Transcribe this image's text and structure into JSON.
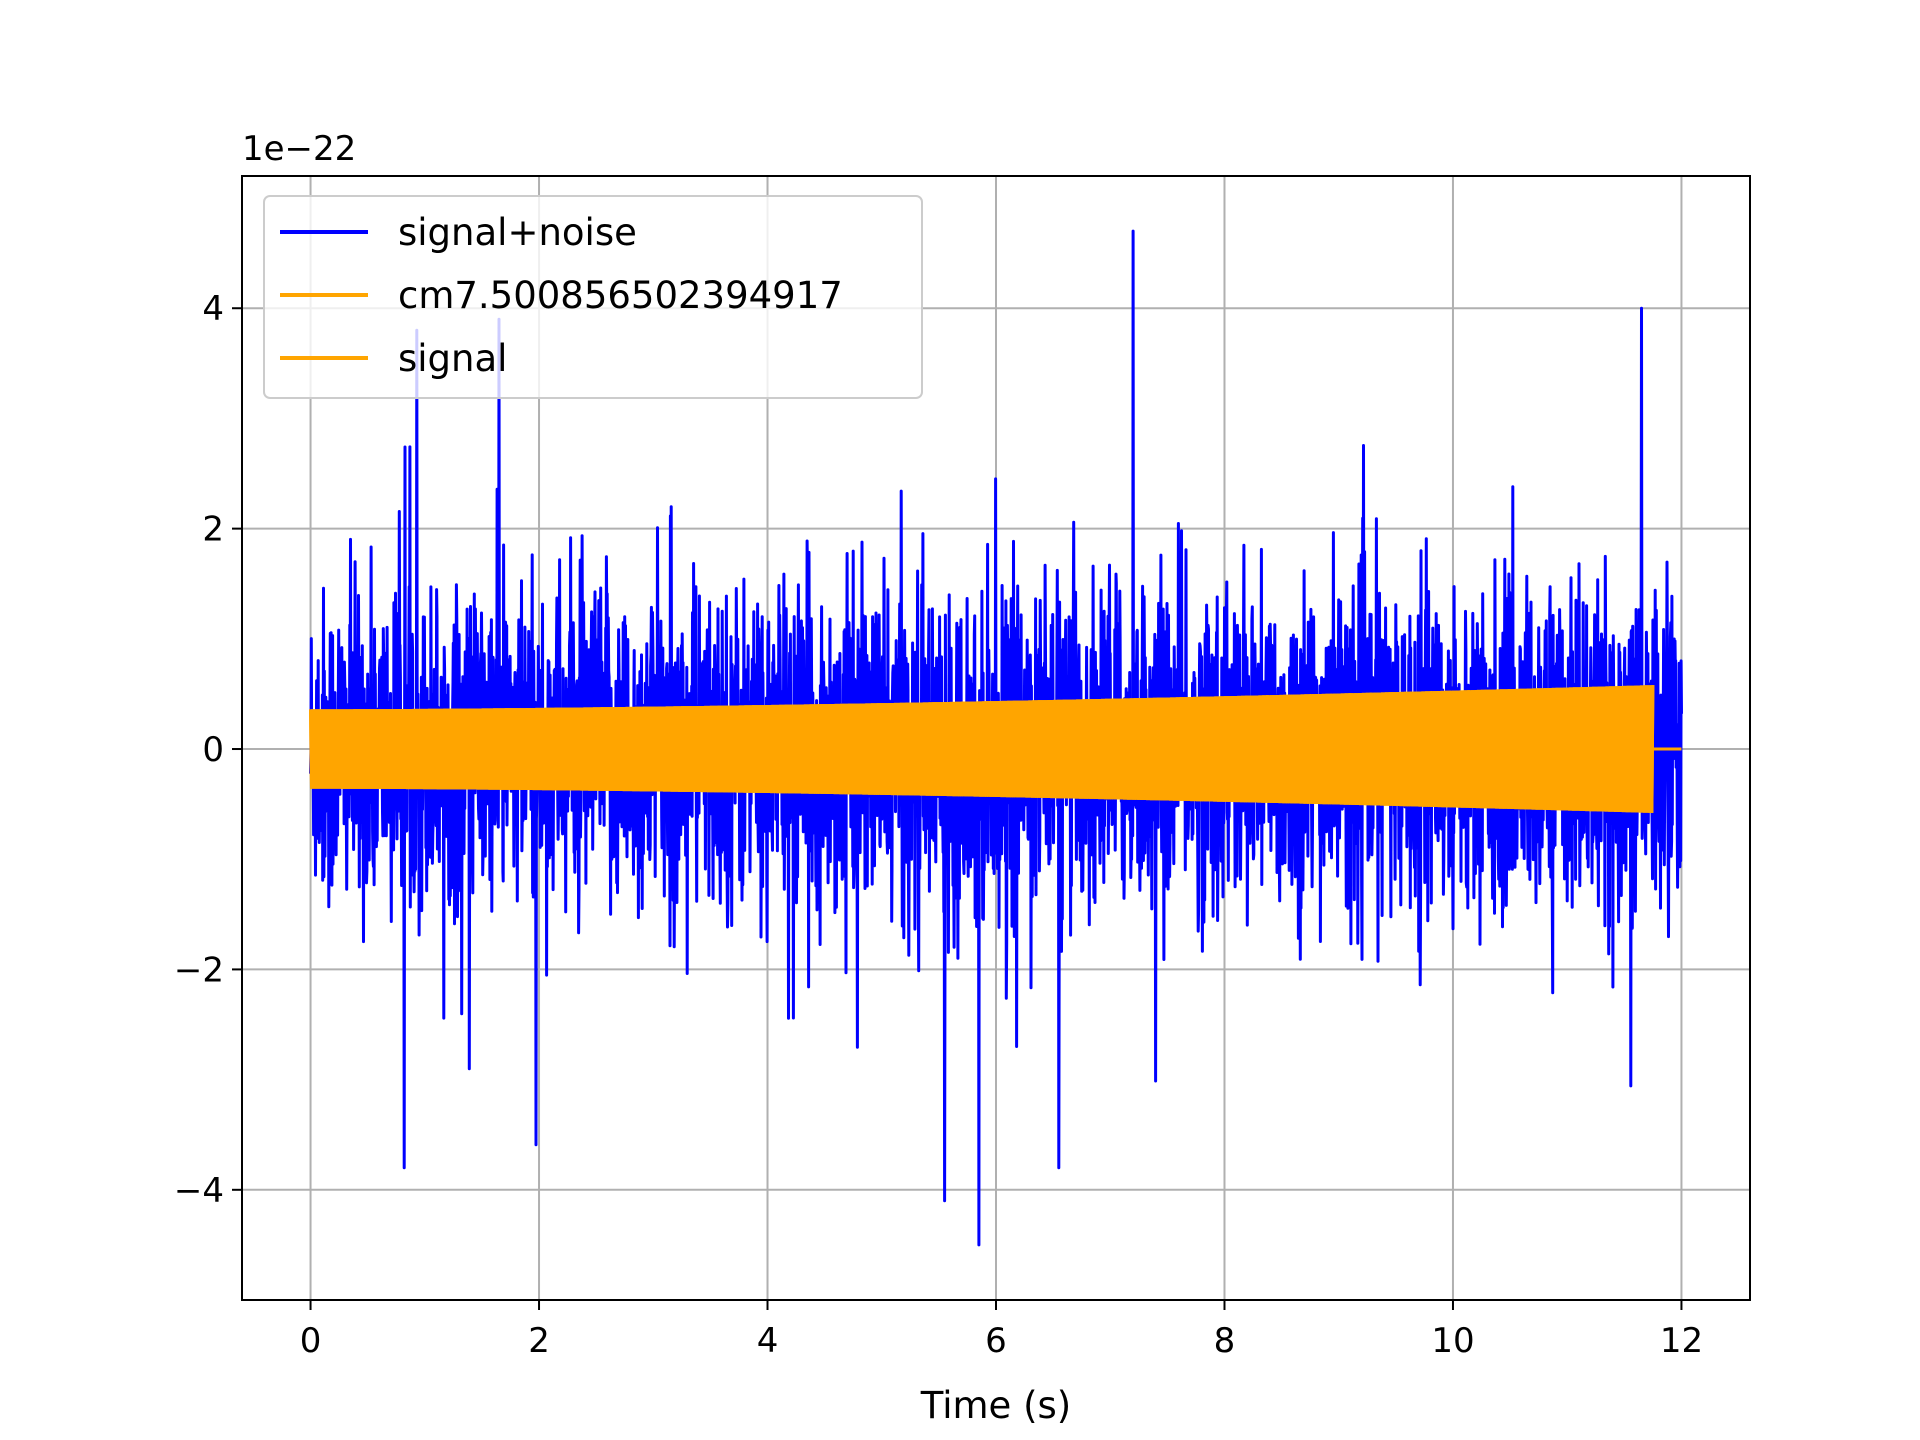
{
  "chart_data": {
    "type": "line",
    "title": "",
    "xlabel": "Time (s)",
    "ylabel": "",
    "offset_text": "1e−22",
    "xlim": [
      -0.6,
      12.6
    ],
    "ylim": [
      -5.0,
      5.2
    ],
    "y_scale": 1e-22,
    "grid": true,
    "legend_placement": "upper left",
    "x_ticks": [
      {
        "value": 0,
        "label": "0"
      },
      {
        "value": 2,
        "label": "2"
      },
      {
        "value": 4,
        "label": "4"
      },
      {
        "value": 6,
        "label": "6"
      },
      {
        "value": 8,
        "label": "8"
      },
      {
        "value": 10,
        "label": "10"
      },
      {
        "value": 12,
        "label": "12"
      }
    ],
    "y_ticks": [
      {
        "value": 4,
        "label": "4"
      },
      {
        "value": 2,
        "label": "2"
      },
      {
        "value": 0,
        "label": "0"
      },
      {
        "value": -2,
        "label": "−2"
      },
      {
        "value": -4,
        "label": "−4"
      }
    ],
    "series": [
      {
        "name": "signal+noise",
        "color": "#0000ff",
        "x_range": [
          0,
          12.0
        ],
        "typical_envelope": [
          -2.2,
          2.2
        ],
        "peaks": [
          {
            "x": 7.2,
            "y": 4.7
          },
          {
            "x": 11.65,
            "y": 4.0
          },
          {
            "x": 0.93,
            "y": 3.8
          },
          {
            "x": 5.85,
            "y": -4.5
          },
          {
            "x": 5.55,
            "y": -4.1
          },
          {
            "x": 1.65,
            "y": 3.9
          },
          {
            "x": 0.82,
            "y": -3.8
          },
          {
            "x": 6.55,
            "y": -3.8
          }
        ]
      },
      {
        "name": "cm7.500856502394917",
        "color": "#ffa500",
        "x_range": [
          0,
          11.75
        ],
        "amplitude_start": 0.36,
        "amplitude_end": 0.58
      },
      {
        "name": "signal",
        "color": "#ffa500",
        "x_range": [
          0,
          12.0
        ],
        "amplitude_start": 0.36,
        "amplitude_end": 0.58,
        "end_of_signal_x": 11.75
      }
    ]
  },
  "legend": {
    "items": [
      {
        "label": "signal+noise",
        "color": "#0000ff"
      },
      {
        "label": "cm7.500856502394917",
        "color": "#ffa500"
      },
      {
        "label": "signal",
        "color": "#ffa500"
      }
    ]
  }
}
